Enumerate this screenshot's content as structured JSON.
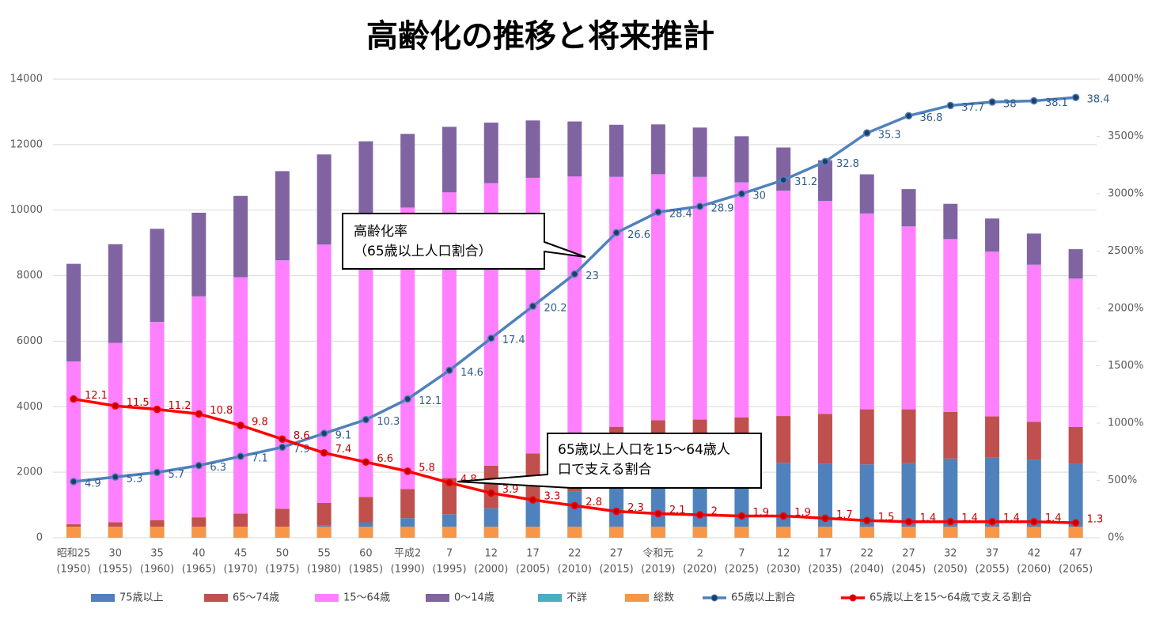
{
  "chart_data": {
    "type": "bar",
    "title": "高齢化の推移と将来推計",
    "categories": [
      [
        "昭和25",
        "(1950)"
      ],
      [
        "30",
        "(1955)"
      ],
      [
        "35",
        "(1960)"
      ],
      [
        "40",
        "(1965)"
      ],
      [
        "45",
        "(1970)"
      ],
      [
        "50",
        "(1975)"
      ],
      [
        "55",
        "(1980)"
      ],
      [
        "60",
        "(1985)"
      ],
      [
        "平成2",
        "(1990)"
      ],
      [
        "7",
        "(1995)"
      ],
      [
        "12",
        "(2000)"
      ],
      [
        "17",
        "(2005)"
      ],
      [
        "22",
        "(2010)"
      ],
      [
        "27",
        "(2015)"
      ],
      [
        "令和元",
        "(2019)"
      ],
      [
        "２",
        "(2020)"
      ],
      [
        "7",
        "(2025)"
      ],
      [
        "12",
        "(2030)"
      ],
      [
        "17",
        "(2035)"
      ],
      [
        "22",
        "(2040)"
      ],
      [
        "27",
        "(2045)"
      ],
      [
        "32",
        "(2050)"
      ],
      [
        "37",
        "(2055)"
      ],
      [
        "42",
        "(2060)"
      ],
      [
        "47",
        "(2065)"
      ]
    ],
    "ylim": [
      0,
      14000
    ],
    "yticks": [
      0,
      2000,
      4000,
      6000,
      8000,
      10000,
      12000,
      14000
    ],
    "y2lim": [
      0,
      40
    ],
    "y2ticks": [
      {
        "value": 0,
        "label": "0%"
      },
      {
        "value": 5,
        "label": "500%"
      },
      {
        "value": 10,
        "label": "1000%"
      },
      {
        "value": 15,
        "label": "1500%"
      },
      {
        "value": 20,
        "label": "2000%"
      },
      {
        "value": 25,
        "label": "2500%"
      },
      {
        "value": 30,
        "label": "3000%"
      },
      {
        "value": 35,
        "label": "3500%"
      },
      {
        "value": 40,
        "label": "4000%"
      }
    ],
    "grid": true,
    "legend": "bottom",
    "series": [
      {
        "name": "75歳以上",
        "color": "#4f81bd",
        "values": [
          107,
          139,
          163,
          189,
          224,
          284,
          366,
          471,
          597,
          717,
          901,
          1164,
          1407,
          1632,
          1849,
          1860,
          2180,
          2288,
          2260,
          2239,
          2277,
          2417,
          2446,
          2387,
          2248
        ]
      },
      {
        "name": "65〜74歳",
        "color": "#c0504d",
        "values": [
          309,
          336,
          377,
          435,
          516,
          603,
          699,
          776,
          892,
          1109,
          1301,
          1412,
          1517,
          1755,
          1740,
          1747,
          1497,
          1428,
          1522,
          1681,
          1643,
          1424,
          1258,
          1154,
          1133
        ]
      },
      {
        "name": "15〜64歳",
        "color": "#ff80ff",
        "values": [
          4966,
          5473,
          6047,
          6744,
          7212,
          7581,
          7884,
          8251,
          8590,
          8716,
          8622,
          8409,
          8103,
          7629,
          7507,
          7406,
          7170,
          6875,
          6494,
          5978,
          5584,
          5275,
          5028,
          4793,
          4529
        ]
      },
      {
        "name": "0〜14歳",
        "color": "#8064a2",
        "values": [
          2979,
          3012,
          2843,
          2553,
          2482,
          2722,
          2751,
          2603,
          2249,
          2001,
          1847,
          1752,
          1680,
          1589,
          1521,
          1507,
          1407,
          1321,
          1246,
          1194,
          1138,
          1077,
          1012,
          951,
          898
        ]
      },
      {
        "name": "不詳",
        "color": "#4bacc6",
        "values": [
          0,
          0,
          0,
          0,
          0,
          0,
          0,
          0,
          0,
          0,
          0,
          0,
          0,
          0,
          0,
          0,
          0,
          0,
          0,
          0,
          0,
          0,
          0,
          0,
          0
        ]
      },
      {
        "name": "総数",
        "color": "#f79646",
        "stack": false,
        "values": [
          340,
          340,
          340,
          340,
          340,
          340,
          340,
          340,
          340,
          340,
          340,
          340,
          340,
          340,
          340,
          340,
          340,
          340,
          340,
          340,
          340,
          340,
          340,
          340,
          340
        ]
      },
      {
        "name": "65歳以上割合",
        "color": "#4f81bd",
        "type": "line",
        "axis": "y2",
        "values": [
          4.9,
          5.3,
          5.7,
          6.3,
          7.1,
          7.9,
          9.1,
          10.3,
          12.1,
          14.6,
          17.4,
          20.2,
          23,
          26.6,
          28.4,
          28.9,
          30,
          31.2,
          32.8,
          35.3,
          36.8,
          37.7,
          38,
          38.1,
          38.4
        ]
      },
      {
        "name": "65歳以上を15〜64歳で支える割合",
        "color": "#ff0000",
        "type": "line",
        "axis": "y2",
        "values": [
          12.1,
          11.5,
          11.2,
          10.8,
          9.8,
          8.6,
          7.4,
          6.6,
          5.8,
          4.8,
          3.9,
          3.3,
          2.8,
          2.3,
          2.1,
          2,
          1.9,
          1.9,
          1.7,
          1.5,
          1.4,
          1.4,
          1.4,
          1.4,
          1.3
        ]
      }
    ],
    "annotations": [
      [
        "高齢化率",
        "（65歳以上人口割合）"
      ],
      [
        "65歳以上人口を15〜64歳人",
        "口で支える割合"
      ]
    ]
  }
}
